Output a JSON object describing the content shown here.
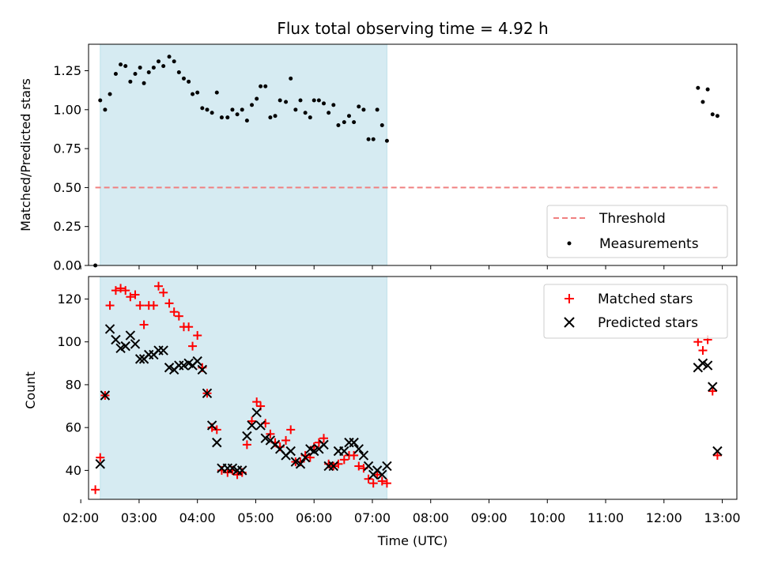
{
  "title": "Flux total observing time = 4.92 h",
  "chart_data": [
    {
      "type": "scatter",
      "ylabel": "Matched/Predicted stars",
      "xlim": [
        "02:08",
        "13:15"
      ],
      "ylim": [
        0,
        1.42
      ],
      "yticks": [
        "0.00",
        "0.25",
        "0.50",
        "0.75",
        "1.00",
        "1.25"
      ],
      "observing_window": [
        "02:20",
        "07:15"
      ],
      "threshold": {
        "label": "Threshold",
        "value": 0.5,
        "x_range": [
          "02:15",
          "12:55"
        ],
        "color": "#f08080"
      },
      "measurements": {
        "label": "Measurements",
        "color": "#000000",
        "points": [
          [
            "02:15",
            0.0
          ],
          [
            "02:20",
            1.06
          ],
          [
            "02:25",
            1.0
          ],
          [
            "02:30",
            1.1
          ],
          [
            "02:36",
            1.23
          ],
          [
            "02:41",
            1.29
          ],
          [
            "02:46",
            1.28
          ],
          [
            "02:51",
            1.18
          ],
          [
            "02:56",
            1.23
          ],
          [
            "03:01",
            1.27
          ],
          [
            "03:05",
            1.17
          ],
          [
            "03:10",
            1.24
          ],
          [
            "03:15",
            1.27
          ],
          [
            "03:20",
            1.31
          ],
          [
            "03:25",
            1.28
          ],
          [
            "03:31",
            1.34
          ],
          [
            "03:36",
            1.31
          ],
          [
            "03:41",
            1.24
          ],
          [
            "03:46",
            1.2
          ],
          [
            "03:51",
            1.18
          ],
          [
            "03:55",
            1.1
          ],
          [
            "04:00",
            1.11
          ],
          [
            "04:05",
            1.01
          ],
          [
            "04:10",
            1.0
          ],
          [
            "04:15",
            0.98
          ],
          [
            "04:20",
            1.11
          ],
          [
            "04:25",
            0.95
          ],
          [
            "04:31",
            0.95
          ],
          [
            "04:36",
            1.0
          ],
          [
            "04:41",
            0.97
          ],
          [
            "04:46",
            1.0
          ],
          [
            "04:51",
            0.93
          ],
          [
            "04:56",
            1.03
          ],
          [
            "05:01",
            1.07
          ],
          [
            "05:05",
            1.15
          ],
          [
            "05:10",
            1.15
          ],
          [
            "05:15",
            0.95
          ],
          [
            "05:20",
            0.96
          ],
          [
            "05:25",
            1.06
          ],
          [
            "05:31",
            1.05
          ],
          [
            "05:36",
            1.2
          ],
          [
            "05:41",
            1.0
          ],
          [
            "05:46",
            1.06
          ],
          [
            "05:51",
            0.98
          ],
          [
            "05:56",
            0.95
          ],
          [
            "06:00",
            1.06
          ],
          [
            "06:05",
            1.06
          ],
          [
            "06:10",
            1.04
          ],
          [
            "06:15",
            0.98
          ],
          [
            "06:20",
            1.03
          ],
          [
            "06:25",
            0.9
          ],
          [
            "06:31",
            0.92
          ],
          [
            "06:36",
            0.96
          ],
          [
            "06:41",
            0.92
          ],
          [
            "06:46",
            1.02
          ],
          [
            "06:51",
            1.0
          ],
          [
            "06:56",
            0.81
          ],
          [
            "07:01",
            0.81
          ],
          [
            "07:05",
            1.0
          ],
          [
            "07:10",
            0.9
          ],
          [
            "07:15",
            0.8
          ],
          [
            "12:35",
            1.14
          ],
          [
            "12:40",
            1.05
          ],
          [
            "12:45",
            1.13
          ],
          [
            "12:50",
            0.97
          ],
          [
            "12:55",
            0.96
          ]
        ]
      },
      "legend": {
        "position": "lower right",
        "entries": [
          "Threshold",
          "Measurements"
        ]
      }
    },
    {
      "type": "scatter",
      "xlabel": "Time (UTC)",
      "ylabel": "Count",
      "xlim": [
        "02:08",
        "13:15"
      ],
      "ylim": [
        26.5,
        130.5
      ],
      "yticks": [
        "40",
        "60",
        "80",
        "100",
        "120"
      ],
      "xticks": [
        "02:00",
        "03:00",
        "04:00",
        "05:00",
        "06:00",
        "07:00",
        "08:00",
        "09:00",
        "10:00",
        "11:00",
        "12:00",
        "13:00"
      ],
      "observing_window": [
        "02:20",
        "07:15"
      ],
      "series": [
        {
          "name": "Matched stars",
          "marker": "+",
          "color": "#ff0000",
          "points": [
            [
              "02:15",
              31
            ],
            [
              "02:20",
              46
            ],
            [
              "02:25",
              75
            ],
            [
              "02:30",
              117
            ],
            [
              "02:36",
              124
            ],
            [
              "02:41",
              125
            ],
            [
              "02:46",
              124
            ],
            [
              "02:51",
              121
            ],
            [
              "02:56",
              122
            ],
            [
              "03:01",
              117
            ],
            [
              "03:05",
              108
            ],
            [
              "03:10",
              117
            ],
            [
              "03:15",
              117
            ],
            [
              "03:20",
              126
            ],
            [
              "03:25",
              123
            ],
            [
              "03:31",
              118
            ],
            [
              "03:36",
              114
            ],
            [
              "03:41",
              112
            ],
            [
              "03:46",
              107
            ],
            [
              "03:51",
              107
            ],
            [
              "03:55",
              98
            ],
            [
              "04:00",
              103
            ],
            [
              "04:05",
              88
            ],
            [
              "04:10",
              76
            ],
            [
              "04:15",
              60
            ],
            [
              "04:20",
              59
            ],
            [
              "04:25",
              40
            ],
            [
              "04:31",
              39
            ],
            [
              "04:36",
              40
            ],
            [
              "04:41",
              38
            ],
            [
              "04:46",
              39
            ],
            [
              "04:51",
              52
            ],
            [
              "04:56",
              63
            ],
            [
              "05:01",
              72
            ],
            [
              "05:05",
              70
            ],
            [
              "05:10",
              62
            ],
            [
              "05:15",
              57
            ],
            [
              "05:20",
              53
            ],
            [
              "05:25",
              51
            ],
            [
              "05:31",
              54
            ],
            [
              "05:36",
              59
            ],
            [
              "05:41",
              44
            ],
            [
              "05:46",
              44
            ],
            [
              "05:51",
              47
            ],
            [
              "05:56",
              46
            ],
            [
              "06:00",
              51
            ],
            [
              "06:05",
              53
            ],
            [
              "06:10",
              55
            ],
            [
              "06:15",
              43
            ],
            [
              "06:20",
              42
            ],
            [
              "06:25",
              43
            ],
            [
              "06:31",
              45
            ],
            [
              "06:36",
              47
            ],
            [
              "06:41",
              47
            ],
            [
              "06:46",
              42
            ],
            [
              "06:51",
              41
            ],
            [
              "06:56",
              36
            ],
            [
              "07:01",
              34
            ],
            [
              "07:05",
              38
            ],
            [
              "07:10",
              35
            ],
            [
              "07:15",
              34
            ],
            [
              "12:35",
              100
            ],
            [
              "12:40",
              96
            ],
            [
              "12:45",
              101
            ],
            [
              "12:50",
              77
            ],
            [
              "12:55",
              47
            ]
          ]
        },
        {
          "name": "Predicted stars",
          "marker": "x",
          "color": "#000000",
          "points": [
            [
              "02:20",
              43
            ],
            [
              "02:25",
              75
            ],
            [
              "02:30",
              106
            ],
            [
              "02:36",
              101
            ],
            [
              "02:41",
              97
            ],
            [
              "02:46",
              98
            ],
            [
              "02:51",
              103
            ],
            [
              "02:56",
              99
            ],
            [
              "03:01",
              92
            ],
            [
              "03:05",
              92
            ],
            [
              "03:10",
              94
            ],
            [
              "03:15",
              94
            ],
            [
              "03:20",
              96
            ],
            [
              "03:25",
              96
            ],
            [
              "03:31",
              88
            ],
            [
              "03:36",
              87
            ],
            [
              "03:41",
              89
            ],
            [
              "03:46",
              89
            ],
            [
              "03:51",
              90
            ],
            [
              "03:55",
              89
            ],
            [
              "04:00",
              91
            ],
            [
              "04:05",
              87
            ],
            [
              "04:10",
              76
            ],
            [
              "04:15",
              61
            ],
            [
              "04:20",
              53
            ],
            [
              "04:25",
              41
            ],
            [
              "04:31",
              41
            ],
            [
              "04:36",
              41
            ],
            [
              "04:41",
              40
            ],
            [
              "04:46",
              40
            ],
            [
              "04:51",
              56
            ],
            [
              "04:56",
              61
            ],
            [
              "05:01",
              67
            ],
            [
              "05:05",
              61
            ],
            [
              "05:10",
              55
            ],
            [
              "05:15",
              54
            ],
            [
              "05:20",
              52
            ],
            [
              "05:25",
              50
            ],
            [
              "05:31",
              47
            ],
            [
              "05:36",
              49
            ],
            [
              "05:41",
              44
            ],
            [
              "05:46",
              43
            ],
            [
              "05:51",
              46
            ],
            [
              "05:56",
              50
            ],
            [
              "06:00",
              49
            ],
            [
              "06:05",
              50
            ],
            [
              "06:10",
              52
            ],
            [
              "06:15",
              42
            ],
            [
              "06:20",
              42
            ],
            [
              "06:25",
              49
            ],
            [
              "06:31",
              49
            ],
            [
              "06:36",
              53
            ],
            [
              "06:41",
              53
            ],
            [
              "06:46",
              50
            ],
            [
              "06:51",
              47
            ],
            [
              "06:56",
              42
            ],
            [
              "07:01",
              38
            ],
            [
              "07:05",
              40
            ],
            [
              "07:10",
              38
            ],
            [
              "07:15",
              42
            ],
            [
              "12:35",
              88
            ],
            [
              "12:40",
              90
            ],
            [
              "12:45",
              89
            ],
            [
              "12:50",
              79
            ],
            [
              "12:55",
              49
            ]
          ]
        }
      ],
      "legend": {
        "position": "upper right",
        "entries": [
          "Matched stars",
          "Predicted stars"
        ]
      }
    }
  ]
}
